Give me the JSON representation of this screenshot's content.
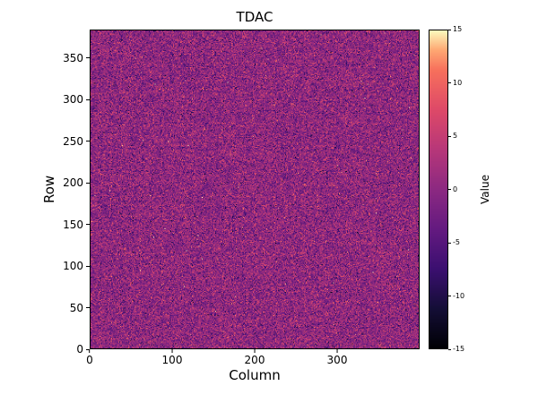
{
  "figure": {
    "background": "#ffffff"
  },
  "chart_data": {
    "type": "heatmap",
    "title": "TDAC",
    "xlabel": "Column",
    "ylabel": "Row",
    "colorbar_label": "Value",
    "n_cols": 400,
    "n_rows": 384,
    "xlim": [
      0,
      400
    ],
    "ylim": [
      0,
      384
    ],
    "clim": [
      -15,
      15
    ],
    "grid": false,
    "legend": "none",
    "xticks": [
      "0",
      "100",
      "200",
      "300"
    ],
    "yticks": [
      "0",
      "50",
      "100",
      "150",
      "200",
      "250",
      "300",
      "350"
    ],
    "colorbar_ticks": [
      "15",
      "10",
      "5",
      "0",
      "-5",
      "-10",
      "-15"
    ],
    "values_description": "Per-pixel TDAC trim values over a 400-column x 384-row pixel matrix; random noise centered at 0 (approx. normal, sigma ~4), integer values clipped to [-15, 15]; rendered with a magma-style colormap",
    "noise": {
      "mean": 0,
      "std": 4,
      "seed": 42,
      "integer": true
    },
    "colormap": {
      "name": "magma",
      "stops": [
        [
          0.0,
          "#000004"
        ],
        [
          0.125,
          "#140e36"
        ],
        [
          0.25,
          "#3b0f70"
        ],
        [
          0.375,
          "#641a80"
        ],
        [
          0.5,
          "#8c2981"
        ],
        [
          0.625,
          "#b73779"
        ],
        [
          0.75,
          "#de4968"
        ],
        [
          0.875,
          "#f7705c"
        ],
        [
          0.9375,
          "#fea873"
        ],
        [
          1.0,
          "#fcfdbf"
        ]
      ]
    }
  }
}
